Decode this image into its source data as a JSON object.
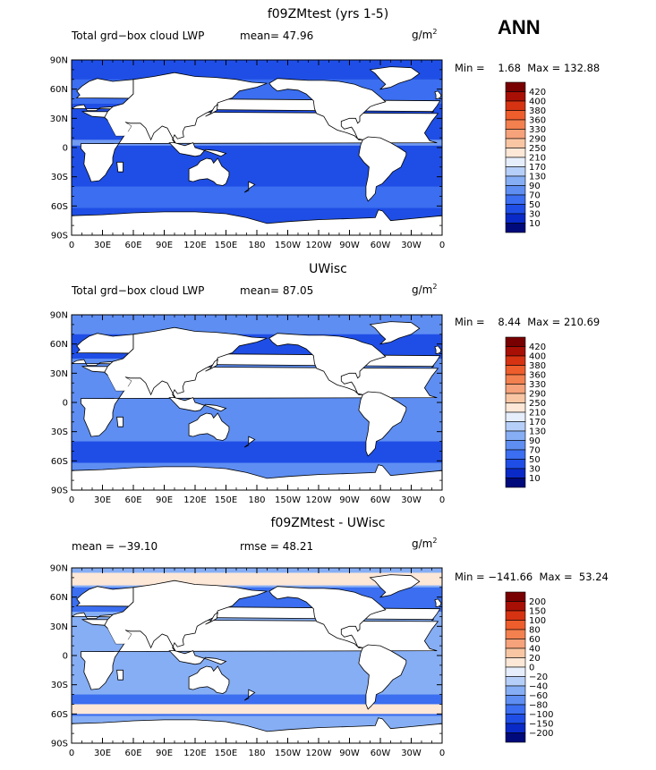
{
  "season": "ANN",
  "colors": {
    "land": "#ffffff",
    "coast": "#000000",
    "seq_scale": [
      "#000a7a",
      "#0a2ac8",
      "#1f4ee6",
      "#3b6ef0",
      "#5e8ef2",
      "#86aef5",
      "#b6cff9",
      "#e6eefc",
      "#fde7d7",
      "#f9c6a4",
      "#f6a27a",
      "#f3804f",
      "#ee5d2c",
      "#d63312",
      "#a81005",
      "#780000"
    ],
    "diff_scale": [
      "#000a7a",
      "#0a2ac8",
      "#1f4ee6",
      "#3b6ef0",
      "#5e8ef2",
      "#86aef5",
      "#b6cff9",
      "#e6eefc",
      "#fde7d7",
      "#f9c6a4",
      "#f6a27a",
      "#f3804f",
      "#ee5d2c",
      "#d63312",
      "#a81005",
      "#780000"
    ]
  },
  "lat_ticks": [
    "90N",
    "60N",
    "30N",
    "0",
    "30S",
    "60S",
    "90S"
  ],
  "lon_ticks": [
    "0",
    "30E",
    "60E",
    "90E",
    "120E",
    "150E",
    "180",
    "150W",
    "120W",
    "90W",
    "60W",
    "30W",
    "0"
  ],
  "panels": [
    {
      "id": "model",
      "title": "f09ZMtest (yrs 1-5)",
      "left_label": "Total grd−box cloud LWP",
      "mid_label": "mean=   47.96",
      "units_base": "g/m",
      "units_exp": "2",
      "minmax": "Min =    1.68  Max = 132.88",
      "colorbar_labels": [
        "420",
        "400",
        "380",
        "360",
        "330",
        "290",
        "250",
        "210",
        "170",
        "130",
        "90",
        "70",
        "50",
        "30",
        "10"
      ],
      "scale": "seq",
      "ocean_level": 2,
      "band_level": 3
    },
    {
      "id": "obs",
      "title": "UWisc",
      "left_label": "Total grd−box cloud LWP",
      "mid_label": "mean=   87.05",
      "units_base": "g/m",
      "units_exp": "2",
      "minmax": "Min =    8.44  Max = 210.69",
      "colorbar_labels": [
        "420",
        "400",
        "380",
        "360",
        "330",
        "290",
        "250",
        "210",
        "170",
        "130",
        "90",
        "70",
        "50",
        "30",
        "10"
      ],
      "scale": "seq",
      "ocean_level": 4,
      "band_level": 2
    },
    {
      "id": "diff",
      "title": "f09ZMtest - UWisc",
      "left_label": "mean = −39.10",
      "mid_label": "rmse =   48.21",
      "units_base": "g/m",
      "units_exp": "2",
      "minmax": "Min = −141.66  Max =  53.24",
      "colorbar_labels": [
        "200",
        "150",
        "100",
        "80",
        "60",
        "40",
        "20",
        "0",
        "−20",
        "−40",
        "−60",
        "−80",
        "−100",
        "−150",
        "−200"
      ],
      "scale": "diff",
      "ocean_level": 5,
      "band_level": 3
    }
  ]
}
